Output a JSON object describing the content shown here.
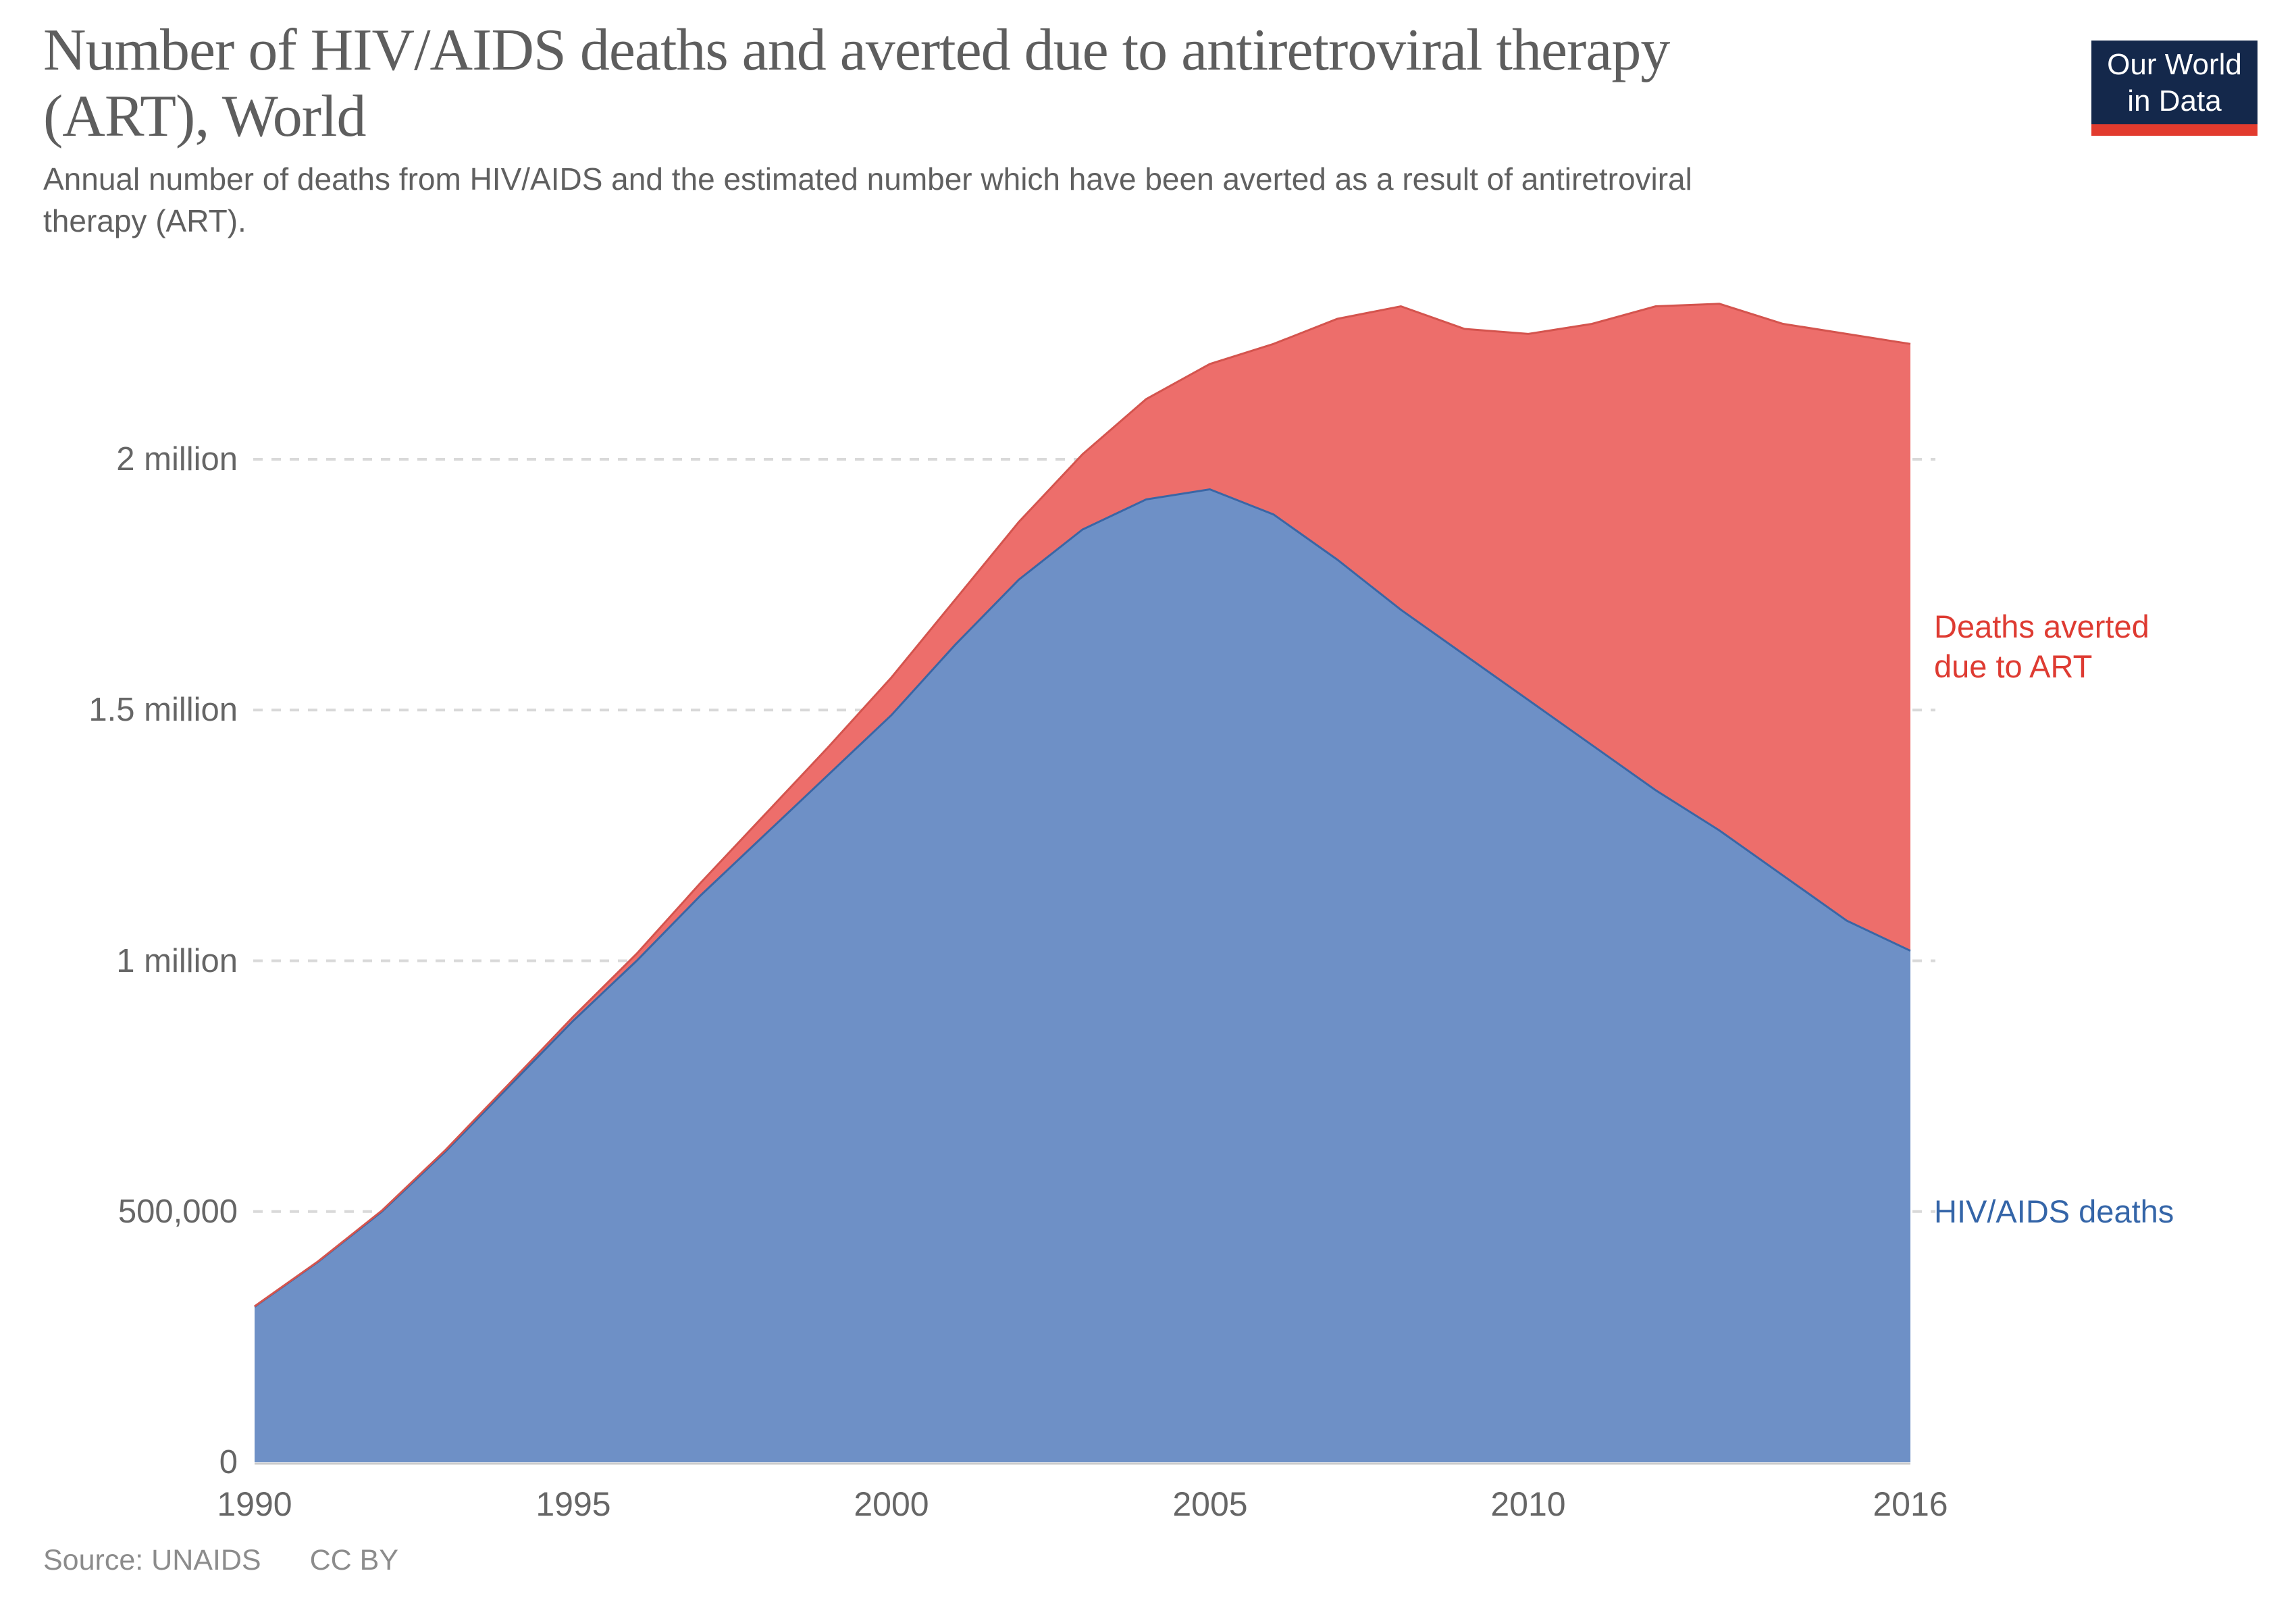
{
  "logo": {
    "line1": "Our World",
    "line2": "in Data",
    "bg_color": "#14284B",
    "bar_color": "#E23B2E"
  },
  "chart_data": {
    "type": "area",
    "stacked": true,
    "title": "Number of HIV/AIDS deaths and averted due to antiretroviral therapy (ART), World",
    "title_lines": [
      "Number of HIV/AIDS deaths and averted due to antiretroviral therapy",
      "(ART), World"
    ],
    "subtitle": "Annual number of deaths from HIV/AIDS and the estimated number which have been averted as a result of antiretroviral therapy (ART).",
    "subtitle_lines": [
      "Annual number of deaths from HIV/AIDS and the estimated number which have been averted as a result of antiretroviral",
      "therapy (ART)."
    ],
    "x": [
      1990,
      1991,
      1992,
      1993,
      1994,
      1995,
      1996,
      1997,
      1998,
      1999,
      2000,
      2001,
      2002,
      2003,
      2004,
      2005,
      2006,
      2007,
      2008,
      2009,
      2010,
      2011,
      2012,
      2013,
      2014,
      2015,
      2016
    ],
    "series": [
      {
        "name": "HIV/AIDS deaths",
        "fill": "#6E90C6",
        "stroke": "#3A66A5",
        "values": [
          310000,
          400000,
          500000,
          620000,
          750000,
          880000,
          1000000,
          1130000,
          1250000,
          1370000,
          1490000,
          1630000,
          1760000,
          1860000,
          1920000,
          1940000,
          1890000,
          1800000,
          1700000,
          1610000,
          1520000,
          1430000,
          1340000,
          1260000,
          1170000,
          1080000,
          1020000
        ]
      },
      {
        "name": "Deaths averted due to ART",
        "fill": "#ED6E6B",
        "stroke": "#D4544E",
        "values": [
          1000,
          1000,
          2000,
          3000,
          5000,
          8000,
          14000,
          25000,
          40000,
          55000,
          75000,
          90000,
          115000,
          150000,
          200000,
          250000,
          340000,
          480000,
          605000,
          650000,
          730000,
          840000,
          965000,
          1050000,
          1100000,
          1170000,
          1210000
        ]
      }
    ],
    "series_labels": {
      "averted": {
        "lines": [
          "Deaths averted",
          "due to ART"
        ],
        "color": "#DE3B32"
      },
      "deaths": {
        "lines": [
          "HIV/AIDS deaths"
        ],
        "color": "#3465A8"
      }
    },
    "xticks": [
      "1990",
      "1995",
      "2000",
      "2005",
      "2010",
      "2016"
    ],
    "xtick_values": [
      1990,
      1995,
      2000,
      2005,
      2010,
      2016
    ],
    "yticks": [
      {
        "value": 0,
        "label": "0"
      },
      {
        "value": 500000,
        "label": "500,000"
      },
      {
        "value": 1000000,
        "label": "1 million"
      },
      {
        "value": 1500000,
        "label": "1.5 million"
      },
      {
        "value": 2000000,
        "label": "2 million"
      }
    ],
    "ylim": [
      0,
      2400000
    ],
    "xlim": [
      1990,
      2016
    ],
    "grid": "horizontal-dashed",
    "grid_color": "#D9D9D9",
    "legend_position": "right-annotations"
  },
  "footer": {
    "source": "Source: UNAIDS",
    "license": "CC BY"
  }
}
